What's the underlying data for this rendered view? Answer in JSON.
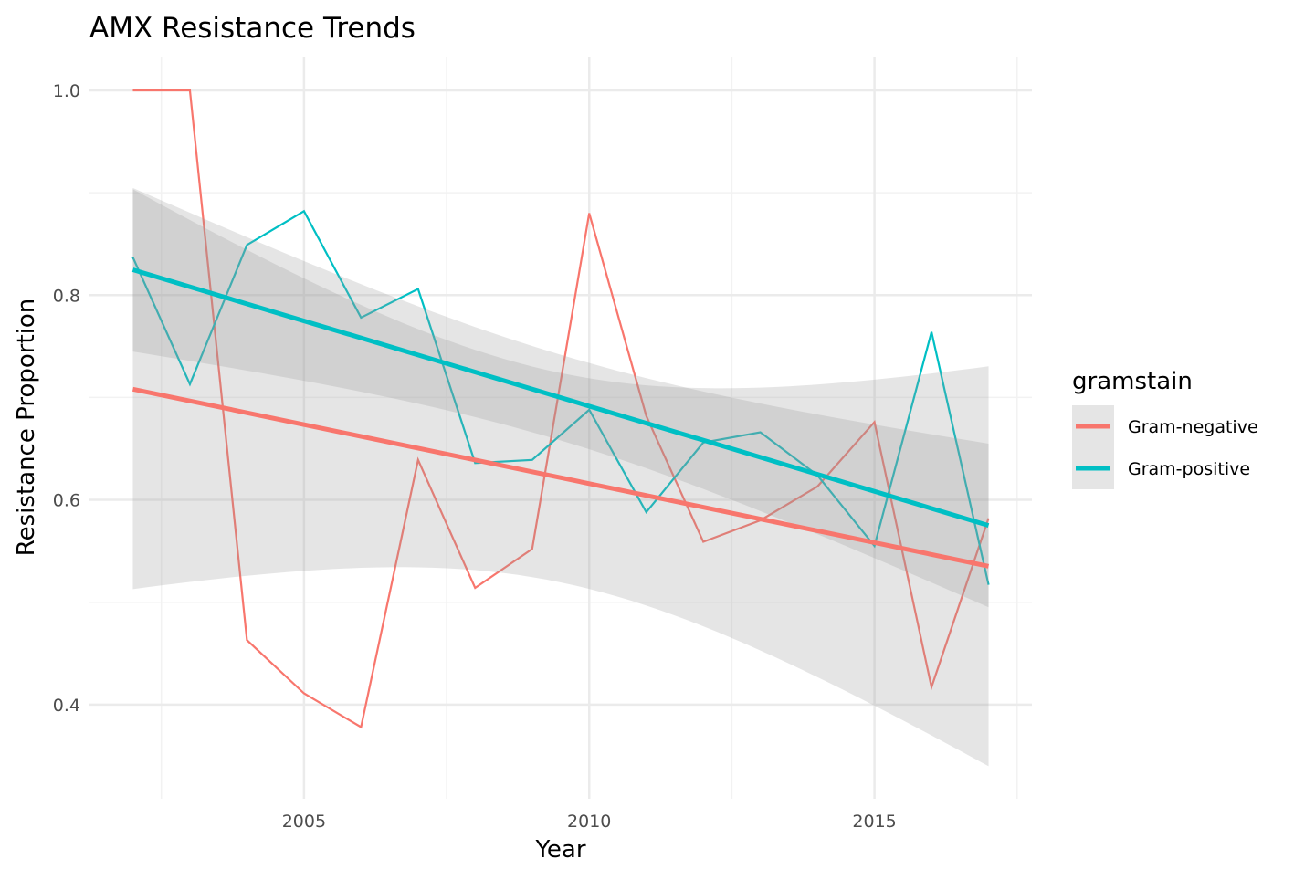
{
  "chart_data": {
    "type": "line",
    "title": "AMX Resistance Trends",
    "xlabel": "Year",
    "ylabel": "Resistance Proportion",
    "xlim": [
      2001.24,
      2017.76
    ],
    "ylim": [
      0.308,
      1.033
    ],
    "x_ticks": [
      2005,
      2010,
      2015
    ],
    "x_tick_labels": [
      "2005",
      "2010",
      "2015"
    ],
    "y_ticks": [
      0.4,
      0.6,
      0.8,
      1.0
    ],
    "y_tick_labels": [
      "0.4",
      "0.6",
      "0.8",
      "1.0"
    ],
    "grid": true,
    "legend": {
      "title": "gramstain",
      "position": "right"
    },
    "smooth": {
      "method": "linear",
      "confidence_band": true,
      "level": 0.95
    },
    "x": [
      2002,
      2003,
      2004,
      2005,
      2006,
      2007,
      2008,
      2009,
      2010,
      2011,
      2012,
      2013,
      2014,
      2015,
      2016,
      2017
    ],
    "series": [
      {
        "name": "Gram-negative",
        "color": "#F8766D",
        "values": [
          1.0,
          1.0,
          0.463,
          0.411,
          0.378,
          0.639,
          0.514,
          0.552,
          0.88,
          0.682,
          0.559,
          0.58,
          0.613,
          0.676,
          0.417,
          0.582
        ]
      },
      {
        "name": "Gram-positive",
        "color": "#00BFC4",
        "values": [
          0.837,
          0.713,
          0.849,
          0.882,
          0.778,
          0.806,
          0.636,
          0.639,
          0.688,
          0.588,
          0.656,
          0.666,
          0.624,
          0.555,
          0.764,
          0.517
        ]
      }
    ]
  }
}
